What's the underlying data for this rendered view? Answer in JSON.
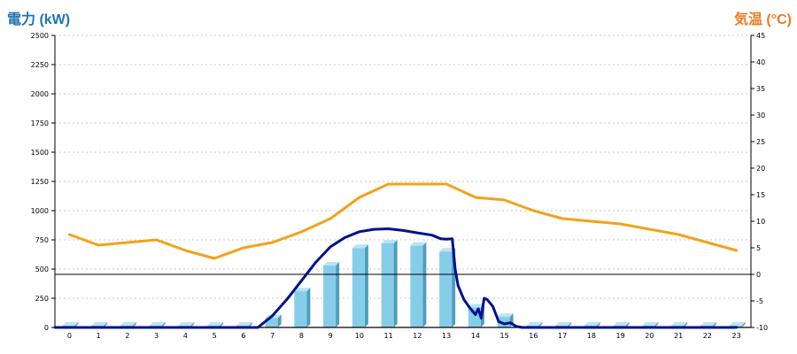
{
  "colors": {
    "power_title": "#1f74b5",
    "temp_title": "#ee7a1f",
    "temp_line": "#f2a21b",
    "power_line": "#00108f",
    "bar_front": "#86cdea",
    "bar_side": "#4f9cbc",
    "bar_top": "#b9e4f5",
    "grid": "#b8b8b8",
    "zero_line": "#000000"
  },
  "chart_data": {
    "type": "bar",
    "y_left_title": "電力 (kW)",
    "y_right_title": "気温 (°C)",
    "categories": [
      "0",
      "1",
      "2",
      "3",
      "4",
      "5",
      "6",
      "7",
      "8",
      "9",
      "10",
      "11",
      "12",
      "13",
      "14",
      "15",
      "16",
      "17",
      "18",
      "19",
      "20",
      "21",
      "22",
      "23"
    ],
    "ylim_left": [
      0,
      2500
    ],
    "ylim_right": [
      -10,
      45
    ],
    "left_ticks": [
      "0",
      "250",
      "500",
      "750",
      "1000",
      "1250",
      "1500",
      "1750",
      "2000",
      "2250",
      "2500"
    ],
    "right_ticks": [
      "-10",
      "-5",
      "0",
      "5",
      "10",
      "15",
      "20",
      "25",
      "30",
      "35",
      "40",
      "45"
    ],
    "grid": true,
    "series": [
      {
        "kind": "bar",
        "axis": "left",
        "values": [
          0,
          0,
          0,
          0,
          0,
          0,
          0,
          80,
          310,
          530,
          680,
          720,
          700,
          650,
          170,
          90,
          0,
          0,
          0,
          0,
          0,
          0,
          0,
          0
        ]
      },
      {
        "kind": "line",
        "axis": "right",
        "values": [
          7.5,
          5.5,
          6,
          6.5,
          4.5,
          3,
          5,
          6,
          8,
          10.5,
          14.5,
          17,
          17,
          17,
          14.5,
          14,
          12,
          10.5,
          10,
          9.5,
          8.5,
          7.5,
          6,
          4.5
        ]
      },
      {
        "kind": "line",
        "axis": "left",
        "x": [
          6.5,
          7,
          7.5,
          8,
          8.5,
          9,
          9.5,
          10,
          10.5,
          11,
          11.5,
          12,
          12.5,
          12.8,
          13,
          13.2,
          13.3,
          13.4,
          13.5,
          13.6,
          13.8,
          14,
          14.1,
          14.2,
          14.3,
          14.4,
          14.6,
          14.8,
          15,
          15.2,
          15.4,
          15.6,
          16,
          17,
          18,
          19,
          20,
          21,
          22,
          23
        ],
        "values": [
          0,
          100,
          240,
          400,
          560,
          690,
          770,
          820,
          840,
          845,
          830,
          810,
          790,
          760,
          755,
          760,
          500,
          360,
          300,
          240,
          170,
          110,
          160,
          80,
          250,
          240,
          180,
          50,
          30,
          40,
          10,
          0,
          0,
          0,
          0,
          0,
          0,
          0,
          0,
          0
        ]
      }
    ]
  }
}
